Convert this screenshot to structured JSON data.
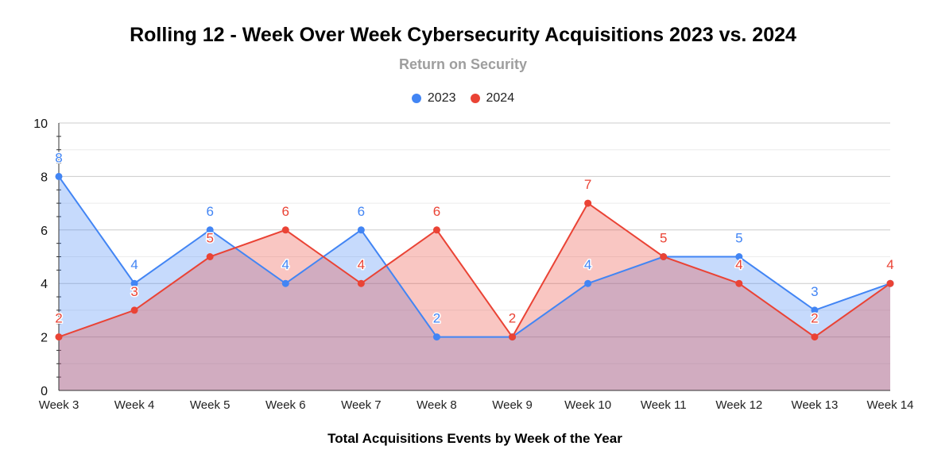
{
  "chart_data": {
    "type": "area",
    "title": "Rolling 12 - Week Over Week Cybersecurity Acquisitions 2023 vs. 2024",
    "subtitle": "Return on Security",
    "xlabel": "Total Acquisitions Events by Week of the Year",
    "ylabel": "",
    "ylim": [
      0,
      10
    ],
    "yticks": [
      "0",
      "2",
      "4",
      "6",
      "8",
      "10"
    ],
    "categories": [
      "Week 3",
      "Week 4",
      "Week 5",
      "Week 6",
      "Week 7",
      "Week 8",
      "Week 9",
      "Week 10",
      "Week 11",
      "Week 12",
      "Week 13",
      "Week 14"
    ],
    "series": [
      {
        "name": "2023",
        "color": "#4285f4",
        "values": [
          8,
          4,
          6,
          4,
          6,
          2,
          2,
          4,
          5,
          5,
          3,
          4
        ]
      },
      {
        "name": "2024",
        "color": "#ea4335",
        "values": [
          2,
          3,
          5,
          6,
          4,
          6,
          2,
          7,
          5,
          4,
          2,
          4
        ]
      }
    ],
    "legend_position": "top-center",
    "grid": true
  }
}
